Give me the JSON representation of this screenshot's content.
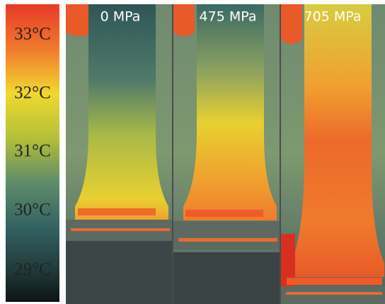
{
  "colorbar": {
    "labels": [
      "33°C",
      "32°C",
      "31°C",
      "30°C",
      "29°C"
    ]
  },
  "panels": [
    {
      "label": "0 MPa"
    },
    {
      "label": "475 MPa"
    },
    {
      "label": "705 MPa"
    }
  ]
}
